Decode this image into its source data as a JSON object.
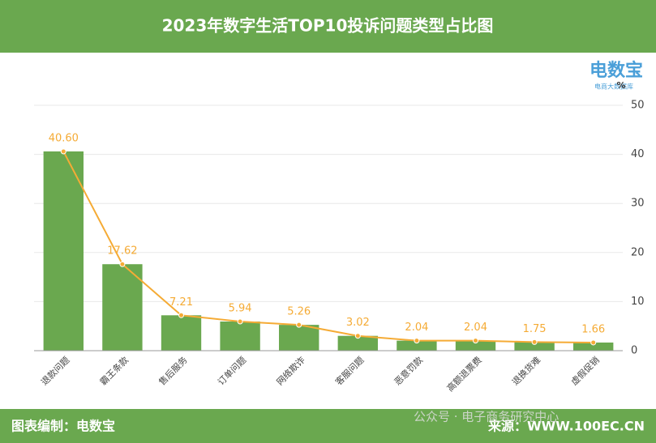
{
  "chart_data": {
    "type": "bar",
    "title": "2023年数字生活TOP10投诉问题类型占比图",
    "unit": "%",
    "logo": "电数宝",
    "logo_sub": "电商大数据库",
    "footer_left": "图表编制：电数宝",
    "footer_right": "来源：WWW.100EC.CN",
    "watermark": "公众号 · 电子商务研究中心",
    "categories": [
      "退款问题",
      "霸王条款",
      "售后服务",
      "订单问题",
      "网络欺诈",
      "客服问题",
      "恶意罚款",
      "高额退票费",
      "退换货难",
      "虚假促销"
    ],
    "values": [
      40.6,
      17.62,
      7.21,
      5.94,
      5.26,
      3.02,
      2.04,
      2.04,
      1.75,
      1.66
    ],
    "value_labels": [
      "40.60",
      "17.62",
      "7.21",
      "5.94",
      "5.26",
      "3.02",
      "2.04",
      "2.04",
      "1.75",
      "1.66"
    ],
    "color": "#6aa84f",
    "line_color": "#f5ab35",
    "ylim": [
      0,
      50
    ],
    "yticks": [
      0,
      10,
      20,
      30,
      40,
      50
    ],
    "grid": true
  }
}
